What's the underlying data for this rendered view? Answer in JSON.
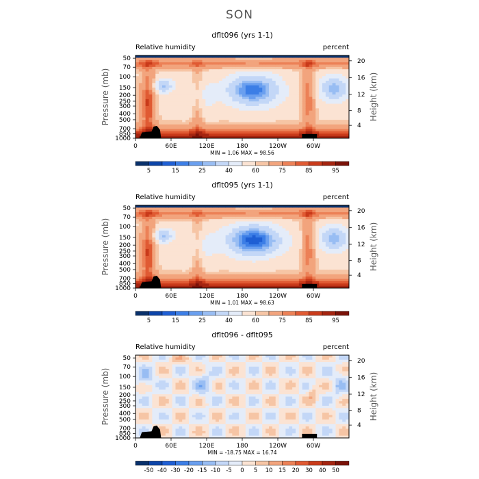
{
  "figure_title": "SON",
  "chart_data": [
    {
      "type": "heatmap",
      "title": "dflt096 (yrs 1-1)",
      "variable": "Relative humidity",
      "units": "percent",
      "ylabel": "Pressure (mb)",
      "ylabel_right": "Height (km)",
      "x_ticks": [
        "0",
        "60E",
        "120E",
        "180",
        "120W",
        "60W"
      ],
      "y_ticks": [
        "50",
        "70",
        "100",
        "150",
        "200",
        "250",
        "300",
        "400",
        "500",
        "700",
        "850",
        "1000"
      ],
      "y_right_ticks": [
        "20",
        "16",
        "12",
        "8",
        "4"
      ],
      "min_label": "MIN =",
      "min_value": "1.06",
      "max_label": "MAX =",
      "max_value": "98.56",
      "colorbar_labels": [
        "5",
        "15",
        "25",
        "40",
        "60",
        "75",
        "85",
        "95"
      ],
      "colorbar_colors": [
        "#08306b",
        "#0c44a8",
        "#1f5fd4",
        "#3c7ee6",
        "#6a9fef",
        "#98bdf3",
        "#c3d7f7",
        "#e4ecf9",
        "#fbe3d3",
        "#f6c5a5",
        "#f2a47d",
        "#ec8157",
        "#e05a33",
        "#c93a1a",
        "#a42410",
        "#7a1208"
      ]
    },
    {
      "type": "heatmap",
      "title": "dflt095 (yrs 1-1)",
      "variable": "Relative humidity",
      "units": "percent",
      "ylabel": "Pressure (mb)",
      "ylabel_right": "Height (km)",
      "x_ticks": [
        "0",
        "60E",
        "120E",
        "180",
        "120W",
        "60W"
      ],
      "y_ticks": [
        "50",
        "70",
        "100",
        "150",
        "200",
        "250",
        "300",
        "400",
        "500",
        "700",
        "850",
        "1000"
      ],
      "y_right_ticks": [
        "20",
        "16",
        "12",
        "8",
        "4"
      ],
      "min_label": "MIN =",
      "min_value": "1.01",
      "max_label": "MAX =",
      "max_value": "98.63",
      "colorbar_labels": [
        "5",
        "15",
        "25",
        "40",
        "60",
        "75",
        "85",
        "95"
      ],
      "colorbar_colors": [
        "#08306b",
        "#0c44a8",
        "#1f5fd4",
        "#3c7ee6",
        "#6a9fef",
        "#98bdf3",
        "#c3d7f7",
        "#e4ecf9",
        "#fbe3d3",
        "#f6c5a5",
        "#f2a47d",
        "#ec8157",
        "#e05a33",
        "#c93a1a",
        "#a42410",
        "#7a1208"
      ]
    },
    {
      "type": "heatmap",
      "title": "dflt096 - dflt095",
      "variable": "Relative humidity",
      "units": "percent",
      "ylabel": "Pressure (mb)",
      "ylabel_right": "Height (km)",
      "x_ticks": [
        "0",
        "60E",
        "120E",
        "180",
        "120W",
        "60W"
      ],
      "y_ticks": [
        "50",
        "70",
        "100",
        "150",
        "200",
        "250",
        "300",
        "400",
        "500",
        "700",
        "850",
        "1000"
      ],
      "y_right_ticks": [
        "20",
        "16",
        "12",
        "8",
        "4"
      ],
      "min_label": "MIN =",
      "min_value": "-18.75",
      "max_label": "MAX =",
      "max_value": "16.74",
      "colorbar_labels": [
        "-50",
        "-40",
        "-30",
        "-20",
        "-15",
        "-10",
        "-5",
        "0",
        "5",
        "10",
        "15",
        "20",
        "30",
        "40",
        "50"
      ],
      "colorbar_colors": [
        "#08306b",
        "#0c44a8",
        "#1f5fd4",
        "#3c7ee6",
        "#6a9fef",
        "#98bdf3",
        "#c3d7f7",
        "#e4ecf9",
        "#fbe3d3",
        "#f6c5a5",
        "#f2a47d",
        "#ec8157",
        "#e05a33",
        "#c93a1a",
        "#a42410",
        "#7a1208"
      ]
    }
  ]
}
